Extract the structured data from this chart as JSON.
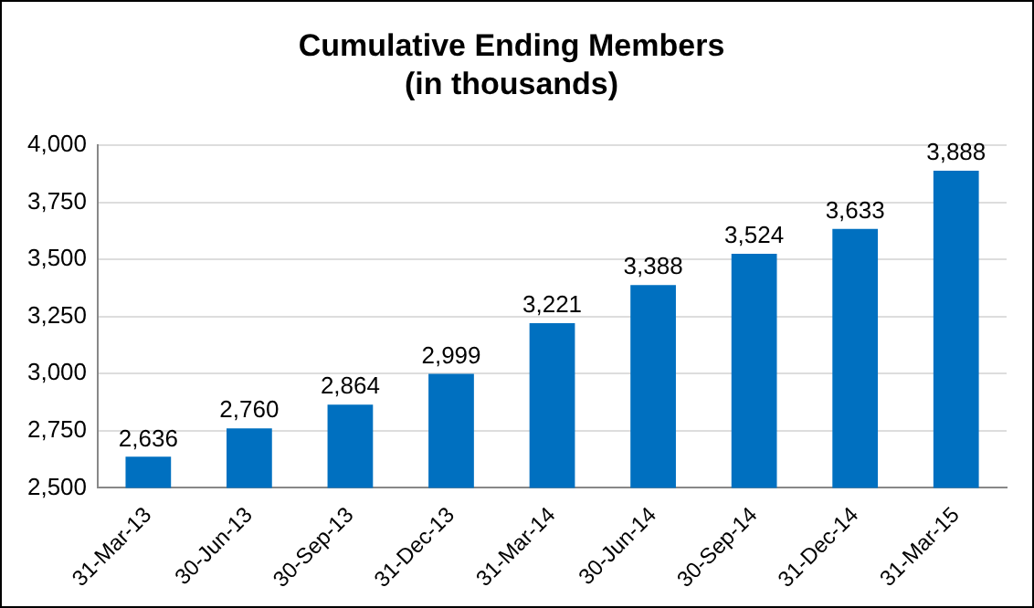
{
  "chart_data": {
    "type": "bar",
    "title": "Cumulative Ending Members\n(in thousands)",
    "categories": [
      "31-Mar-13",
      "30-Jun-13",
      "30-Sep-13",
      "31-Dec-13",
      "31-Mar-14",
      "30-Jun-14",
      "30-Sep-14",
      "31-Dec-14",
      "31-Mar-15"
    ],
    "values": [
      2636,
      2760,
      2864,
      2999,
      3221,
      3388,
      3524,
      3633,
      3888
    ],
    "color": "#0070c0",
    "ylim": [
      2500,
      4000
    ],
    "yticks": [
      {
        "value": 2500,
        "label": "2,500"
      },
      {
        "value": 2750,
        "label": "2,750"
      },
      {
        "value": 3000,
        "label": "3,000"
      },
      {
        "value": 3250,
        "label": "3,250"
      },
      {
        "value": 3500,
        "label": "3,500"
      },
      {
        "value": 3750,
        "label": "3,750"
      },
      {
        "value": 4000,
        "label": "4,000"
      }
    ],
    "value_labels": [
      "2,636",
      "2,760",
      "2,864",
      "2,999",
      "3,221",
      "3,388",
      "3,524",
      "3,633",
      "3,888"
    ],
    "grid": "y",
    "legend": false
  }
}
